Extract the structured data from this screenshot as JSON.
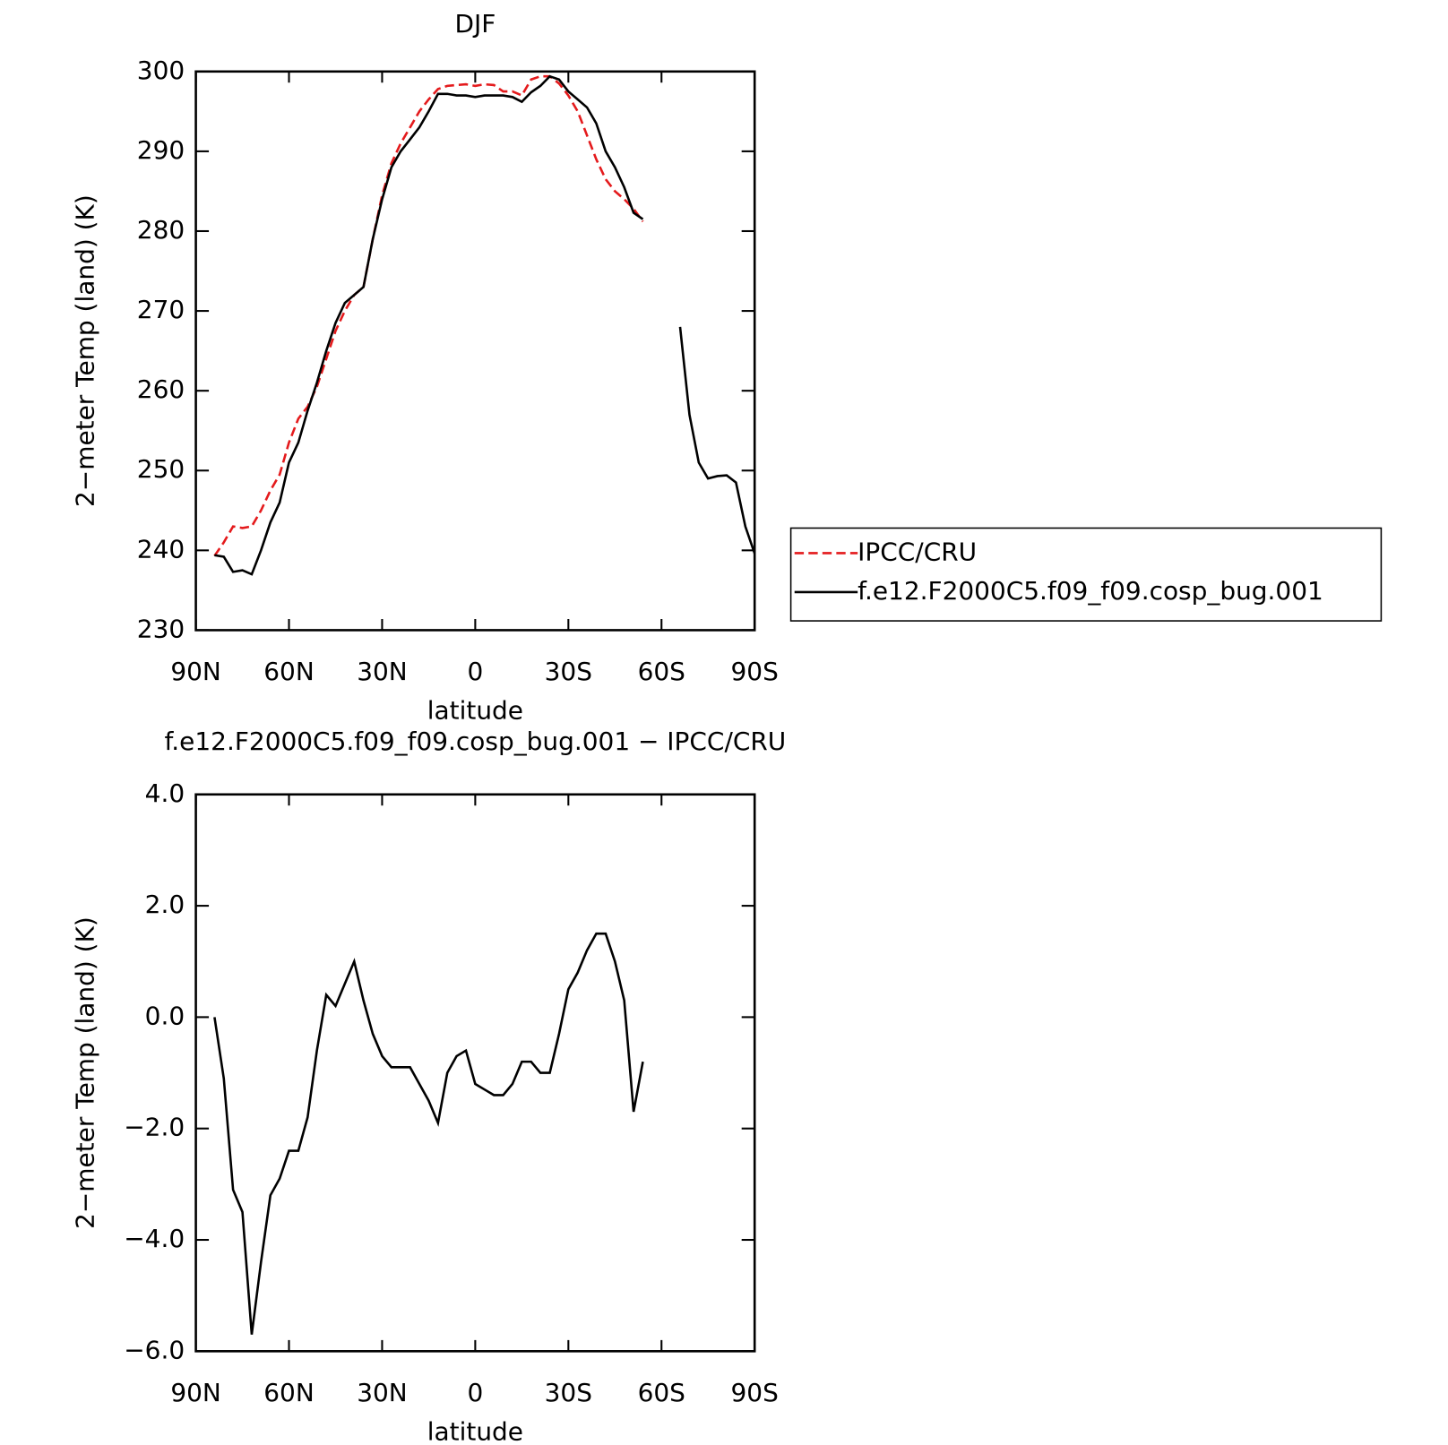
{
  "chart_data": [
    {
      "type": "line",
      "title": "DJF",
      "x_label": "latitude",
      "y_label": "2−meter Temp (land) (K)",
      "x": [
        84,
        81,
        78,
        75,
        72,
        69,
        66,
        63,
        60,
        57,
        54,
        51,
        48,
        45,
        42,
        39,
        36,
        33,
        30,
        27,
        24,
        21,
        18,
        15,
        12,
        9,
        6,
        3,
        0,
        -3,
        -6,
        -9,
        -12,
        -15,
        -18,
        -21,
        -24,
        -27,
        -30,
        -33,
        -36,
        -39,
        -42,
        -45,
        -48,
        -51,
        -54,
        -57,
        -60,
        -63,
        -66,
        -69,
        -72,
        -75,
        -78,
        -81,
        -84,
        -87,
        -90
      ],
      "xlim": [
        90,
        -90
      ],
      "xticks": [
        {
          "value": 90,
          "label": "90N"
        },
        {
          "value": 60,
          "label": "60N"
        },
        {
          "value": 30,
          "label": "30N"
        },
        0,
        {
          "value": -30,
          "label": "30S"
        },
        {
          "value": -60,
          "label": "60S"
        },
        {
          "value": -90,
          "label": "90S"
        }
      ],
      "ylim": [
        230,
        300
      ],
      "yticks": [
        230,
        240,
        250,
        260,
        270,
        280,
        290,
        300
      ],
      "legend": "outside-right",
      "series": [
        {
          "name": "IPCC/CRU",
          "color": "#e41a1c",
          "dashed": true,
          "values": [
            239.3,
            241,
            243,
            242.8,
            243,
            245,
            247.5,
            249.5,
            253.5,
            256.5,
            258,
            260.5,
            264,
            267.5,
            270,
            272,
            273,
            279,
            284.5,
            288.5,
            291,
            293,
            295,
            296.5,
            297.8,
            298.2,
            298.3,
            298.4,
            298.2,
            298.4,
            298.3,
            297.5,
            297.5,
            297,
            299,
            299.4,
            299.4,
            298.5,
            297,
            295,
            292,
            289,
            286.5,
            285,
            284,
            282.8,
            281.2,
            null,
            null,
            null,
            null,
            null,
            null,
            null,
            null,
            null,
            null,
            null,
            null
          ]
        },
        {
          "name": "f.e12.F2000C5.f09_f09.cosp_bug.001",
          "color": "#000000",
          "dashed": false,
          "values": [
            239.4,
            239.2,
            237.3,
            237.5,
            237,
            240,
            243.5,
            246,
            251,
            253.5,
            257.5,
            261,
            265,
            268.5,
            271,
            272,
            273,
            279,
            284,
            288,
            290,
            291.5,
            293,
            295,
            297.2,
            297.2,
            297,
            297,
            296.8,
            297,
            297,
            297,
            296.8,
            296.2,
            297.4,
            298.2,
            299.4,
            299,
            297.5,
            296.5,
            295.5,
            293.5,
            290,
            288,
            285.5,
            282.3,
            281.5,
            null,
            null,
            null,
            268,
            257,
            251,
            249,
            249.3,
            249.4,
            248.5,
            243,
            239.6
          ]
        }
      ]
    },
    {
      "type": "line",
      "title": "f.e12.F2000C5.f09_f09.cosp_bug.001 − IPCC/CRU",
      "x_label": "latitude",
      "y_label": "2−meter Temp (land) (K)",
      "x": [
        84,
        81,
        78,
        75,
        72,
        69,
        66,
        63,
        60,
        57,
        54,
        51,
        48,
        45,
        42,
        39,
        36,
        33,
        30,
        27,
        24,
        21,
        18,
        15,
        12,
        9,
        6,
        3,
        0,
        -3,
        -6,
        -9,
        -12,
        -15,
        -18,
        -21,
        -24,
        -27,
        -30,
        -33,
        -36,
        -39,
        -42,
        -45,
        -48,
        -51,
        -54,
        -57,
        -60,
        -63,
        -66,
        -69,
        -72,
        -75,
        -78,
        -81,
        -84,
        -87,
        -90
      ],
      "xlim": [
        90,
        -90
      ],
      "xticks": [
        {
          "value": 90,
          "label": "90N"
        },
        {
          "value": 60,
          "label": "60N"
        },
        {
          "value": 30,
          "label": "30N"
        },
        0,
        {
          "value": -30,
          "label": "30S"
        },
        {
          "value": -60,
          "label": "60S"
        },
        {
          "value": -90,
          "label": "90S"
        }
      ],
      "ylim": [
        -6,
        4
      ],
      "yticks": [
        {
          "value": -6,
          "label": "−6.0"
        },
        {
          "value": -4,
          "label": "−4.0"
        },
        {
          "value": -2,
          "label": "−2.0"
        },
        {
          "value": 0,
          "label": "0.0"
        },
        {
          "value": 2,
          "label": "2.0"
        },
        {
          "value": 4,
          "label": "4.0"
        }
      ],
      "series": [
        {
          "color": "#000000",
          "dashed": false,
          "values": [
            0,
            -1.1,
            -3.1,
            -3.5,
            -5.7,
            -4.4,
            -3.2,
            -2.9,
            -2.4,
            -2.4,
            -1.8,
            -0.6,
            0.4,
            0.2,
            0.6,
            1,
            0.3,
            -0.3,
            -0.7,
            -0.9,
            -0.9,
            -0.9,
            -1.2,
            -1.5,
            -1.9,
            -1,
            -0.7,
            -0.6,
            -1.2,
            -1.3,
            -1.4,
            -1.4,
            -1.2,
            -0.8,
            -0.8,
            -1,
            -1,
            -0.3,
            0.5,
            0.8,
            1.2,
            1.5,
            1.5,
            1,
            0.3,
            -1.7,
            -0.8,
            null,
            null,
            null,
            null,
            null,
            null,
            null,
            null,
            null,
            null,
            null,
            null
          ]
        }
      ]
    }
  ]
}
